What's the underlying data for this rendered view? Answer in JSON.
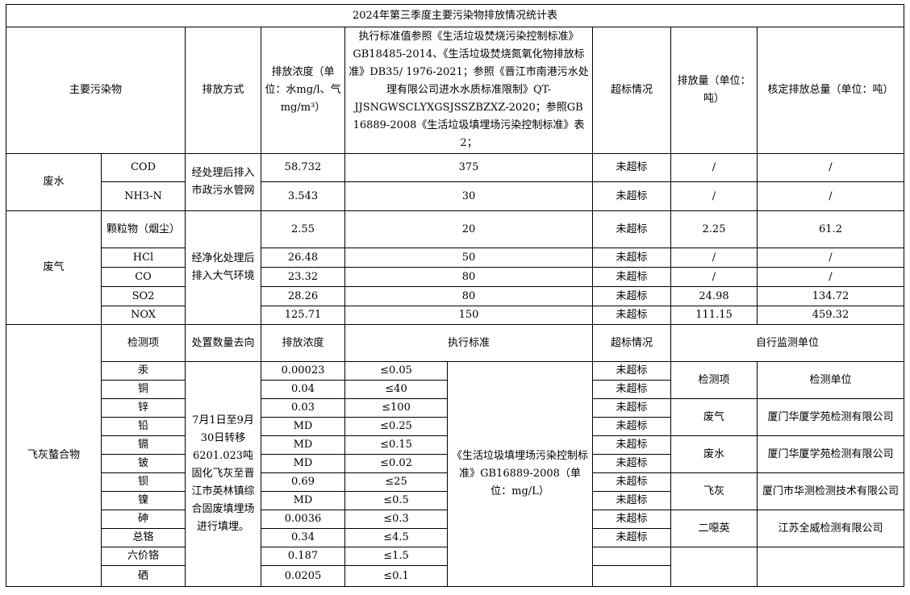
{
  "title": "2024年第三季度主要污染物排放情况统计表",
  "header": {
    "pollutant": "主要污染物",
    "method": "排放方式",
    "concentration": "排放浓度（单位：水mg/l、气mg/m³）",
    "standard": "执行标准值参照《生活垃圾焚烧污染控制标准》GB18485-2014、《生活垃圾焚烧氮氧化物排放标准》DB35/ 1976-2021；参照《晋江市南港污水处理有限公司进水水质标准限制》QT-JJSNGWSCLYXGSJSSZBZXZ-2020；参照GB 16889-2008《生活垃圾填埋场污染控制标准》表2；",
    "exceed": "超标情况",
    "amount": "排放量（单位：吨）",
    "total": "核定排放总量（单位：吨）"
  },
  "wastewater": {
    "category": "废水",
    "method": "经处理后排入市政污水管网",
    "rows": [
      {
        "item": "COD",
        "conc": "58.732",
        "std": "375",
        "exceed": "未超标",
        "amount": "/",
        "total": "/"
      },
      {
        "item": "NH3-N",
        "conc": "3.543",
        "std": "30",
        "exceed": "未超标",
        "amount": "/",
        "total": "/"
      }
    ]
  },
  "wastegas": {
    "category": "废气",
    "method": "经净化处理后排入大气环境",
    "rows": [
      {
        "item": "颗粒物（烟尘）",
        "conc": "2.55",
        "std": "20",
        "exceed": "未超标",
        "amount": "2.25",
        "total": "61.2"
      },
      {
        "item": "HCl",
        "conc": "26.48",
        "std": "50",
        "exceed": "未超标",
        "amount": "/",
        "total": "/"
      },
      {
        "item": "CO",
        "conc": "23.32",
        "std": "80",
        "exceed": "未超标",
        "amount": "/",
        "total": "/"
      },
      {
        "item": "SO2",
        "conc": "28.26",
        "std": "80",
        "exceed": "未超标",
        "amount": "24.98",
        "total": "134.72"
      },
      {
        "item": "NOX",
        "conc": "125.71",
        "std": "150",
        "exceed": "未超标",
        "amount": "111.15",
        "total": "459.32"
      }
    ]
  },
  "flyash": {
    "category": "飞灰螯合物",
    "header": {
      "item": "检测项",
      "disposal": "处置数量去向",
      "conc": "排放浓度",
      "standard": "执行标准",
      "exceed": "超标情况",
      "monitor": "自行监测单位"
    },
    "disposal": "7月1日至9月30日转移6201.023吨固化飞灰至晋江市英林镇综合固废填埋场进行填埋。",
    "standard_text": "《生活垃圾填埋场污染控制标准》GB16889-2008（单位：mg/L）",
    "rows": [
      {
        "item": "汞",
        "conc": "0.00023",
        "limit": "≤0.05",
        "exceed": "未超标"
      },
      {
        "item": "铜",
        "conc": "0.04",
        "limit": "≤40",
        "exceed": "未超标"
      },
      {
        "item": "锌",
        "conc": "0.03",
        "limit": "≤100",
        "exceed": "未超标"
      },
      {
        "item": "铅",
        "conc": "MD",
        "limit": "≤0.25",
        "exceed": "未超标"
      },
      {
        "item": "镉",
        "conc": "MD",
        "limit": "≤0.15",
        "exceed": "未超标"
      },
      {
        "item": "铍",
        "conc": "MD",
        "limit": "≤0.02",
        "exceed": "未超标"
      },
      {
        "item": "钡",
        "conc": "0.69",
        "limit": "≤25",
        "exceed": "未超标"
      },
      {
        "item": "镍",
        "conc": "MD",
        "limit": "≤0.5",
        "exceed": "未超标"
      },
      {
        "item": "砷",
        "conc": "0.0036",
        "limit": "≤0.3",
        "exceed": "未超标"
      },
      {
        "item": "总铬",
        "conc": "0.34",
        "limit": "≤4.5",
        "exceed": "未超标"
      },
      {
        "item": "六价铬",
        "conc": "0.187",
        "limit": "≤1.5",
        "exceed": ""
      },
      {
        "item": "硒",
        "conc": "0.0205",
        "limit": "≤0.1",
        "exceed": ""
      }
    ],
    "monitor": {
      "col_item": "检测项",
      "col_unit": "检测单位",
      "entries": [
        {
          "item": "废气",
          "unit": "厦门华厦学苑检测有限公司"
        },
        {
          "item": "废水",
          "unit": "厦门华厦学苑检测有限公司"
        },
        {
          "item": "飞灰",
          "unit": "厦门市华测检测技术有限公司"
        },
        {
          "item": "二噁英",
          "unit": "江苏全威检测有限公司"
        }
      ]
    }
  }
}
